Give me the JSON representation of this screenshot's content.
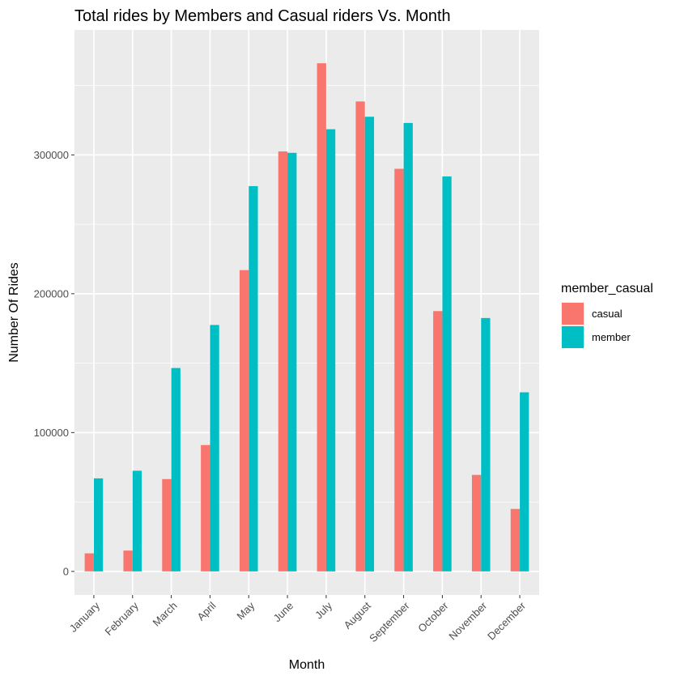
{
  "chart_data": {
    "type": "bar",
    "title": "Total rides by Members and Casual riders Vs. Month",
    "xlabel": "Month",
    "ylabel": "Number Of Rides",
    "categories": [
      "January",
      "February",
      "March",
      "April",
      "May",
      "June",
      "July",
      "August",
      "September",
      "October",
      "November",
      "December"
    ],
    "series": [
      {
        "name": "casual",
        "color": "#F8766D",
        "values": [
          13000,
          15000,
          66500,
          91000,
          217000,
          302500,
          366000,
          338500,
          290000,
          187500,
          69500,
          45000
        ]
      },
      {
        "name": "member",
        "color": "#00BFC4",
        "values": [
          67000,
          72500,
          146500,
          177500,
          277500,
          301500,
          318500,
          327500,
          323000,
          284500,
          182500,
          129000
        ]
      }
    ],
    "ylim": [
      -17000,
      390000
    ],
    "yticks": [
      0,
      100000,
      200000,
      300000
    ],
    "ytick_labels": [
      "0",
      "100000",
      "200000",
      "300000"
    ],
    "grid": true,
    "panel_background": "#EBEBEB",
    "legend": {
      "title": "member_casual",
      "position": "right",
      "items": [
        "casual",
        "member"
      ]
    }
  }
}
